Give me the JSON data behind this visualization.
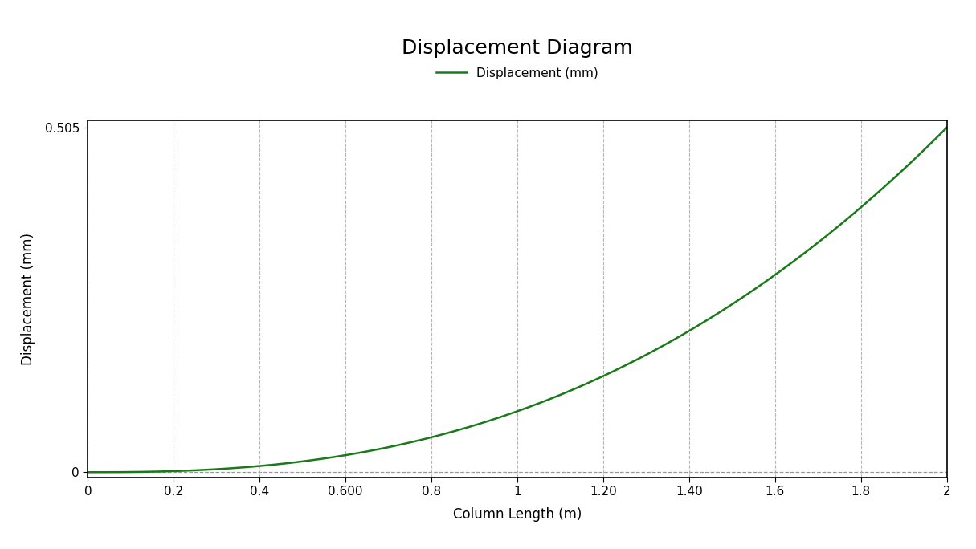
{
  "title": "Displacement Diagram",
  "xlabel": "Column Length (m)",
  "ylabel": "Displacement (mm)",
  "legend_label": "Displacement (mm)",
  "line_color": "#1a7a1a",
  "background_color": "#ffffff",
  "x_min": 0,
  "x_max": 2,
  "y_min": -0.008,
  "y_max": 0.515,
  "y_tick_values": [
    0,
    0.505
  ],
  "y_tick_labels": [
    "0",
    "0.505"
  ],
  "x_tick_values": [
    0,
    0.2,
    0.4,
    0.6,
    0.8,
    1.0,
    1.2,
    1.4,
    1.6,
    1.8,
    2.0
  ],
  "x_tick_labels": [
    "0",
    "0.2",
    "0.4",
    "0.600",
    "0.8",
    "1",
    "1.20",
    "1.40",
    "1.6",
    "1.8",
    "2"
  ],
  "grid_color": "#b0b0b0",
  "zero_line_color": "#999999",
  "title_fontsize": 18,
  "label_fontsize": 12,
  "tick_fontsize": 11,
  "legend_fontsize": 11,
  "line_width": 1.8,
  "max_displacement": 0.505,
  "power_n": 2.5
}
